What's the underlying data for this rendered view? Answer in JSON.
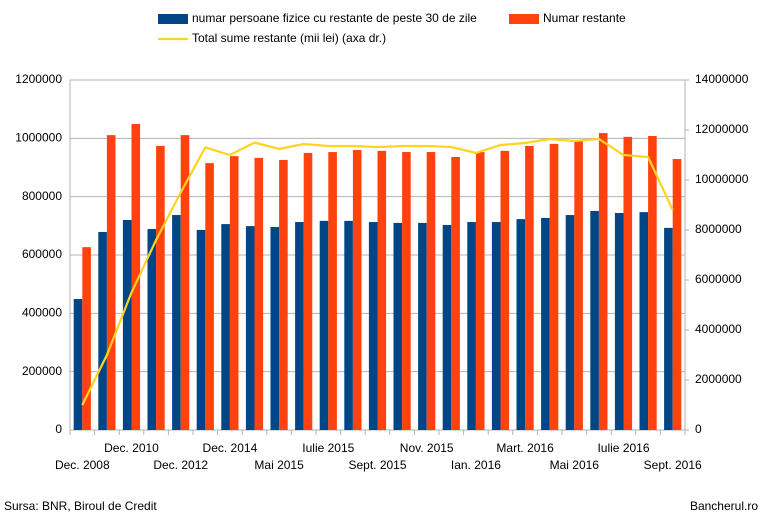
{
  "chart_data": {
    "type": "bar",
    "categories": [
      "Dec. 2008",
      null,
      "Dec. 2010",
      null,
      "Dec. 2012",
      null,
      "Dec. 2014",
      null,
      "Mai 2015",
      null,
      "Iulie 2015",
      null,
      "Sept. 2015",
      null,
      "Nov. 2015",
      null,
      "Ian. 2016",
      null,
      "Mart. 2016",
      null,
      "Mai 2016",
      null,
      "Iulie 2016",
      null,
      "Sept. 2016"
    ],
    "series": [
      {
        "name": "numar persoane fizice cu restante de peste 30 de zile",
        "color": "#004586",
        "type": "bar",
        "values": [
          449000,
          679000,
          720000,
          689000,
          737000,
          686000,
          706000,
          699000,
          696000,
          713000,
          717000,
          717000,
          713000,
          710000,
          710000,
          703000,
          713000,
          713000,
          723000,
          727000,
          737000,
          751000,
          744000,
          747000,
          693000
        ]
      },
      {
        "name": "Numar restante",
        "color": "#ff420e",
        "type": "bar",
        "values": [
          627000,
          1011000,
          1049000,
          974000,
          1011000,
          915000,
          939000,
          933000,
          926000,
          950000,
          953000,
          960000,
          957000,
          953000,
          953000,
          936000,
          953000,
          957000,
          974000,
          981000,
          991000,
          1018000,
          1005000,
          1008000,
          929000
        ]
      },
      {
        "name": "Total sume restante (mii lei) (axa dr.)",
        "color": "#ffd320",
        "type": "line",
        "axis": "y2",
        "values": [
          1000000,
          3000000,
          5500000,
          7600000,
          9500000,
          11300000,
          11000000,
          11500000,
          11240000,
          11440000,
          11360000,
          11360000,
          11320000,
          11360000,
          11360000,
          11320000,
          11080000,
          11400000,
          11480000,
          11640000,
          11560000,
          11640000,
          11000000,
          10920000,
          8800000
        ]
      }
    ],
    "ylim": [
      0,
      1200000
    ],
    "yticks": [
      0,
      200000,
      400000,
      600000,
      800000,
      1000000,
      1200000
    ],
    "y2lim": [
      0,
      14000000
    ],
    "y2ticks": [
      0,
      2000000,
      4000000,
      6000000,
      8000000,
      10000000,
      12000000,
      14000000
    ],
    "grid": true,
    "source": "Sursa: BNR, Biroul de Credit",
    "credit": "Bancherul.ro"
  }
}
